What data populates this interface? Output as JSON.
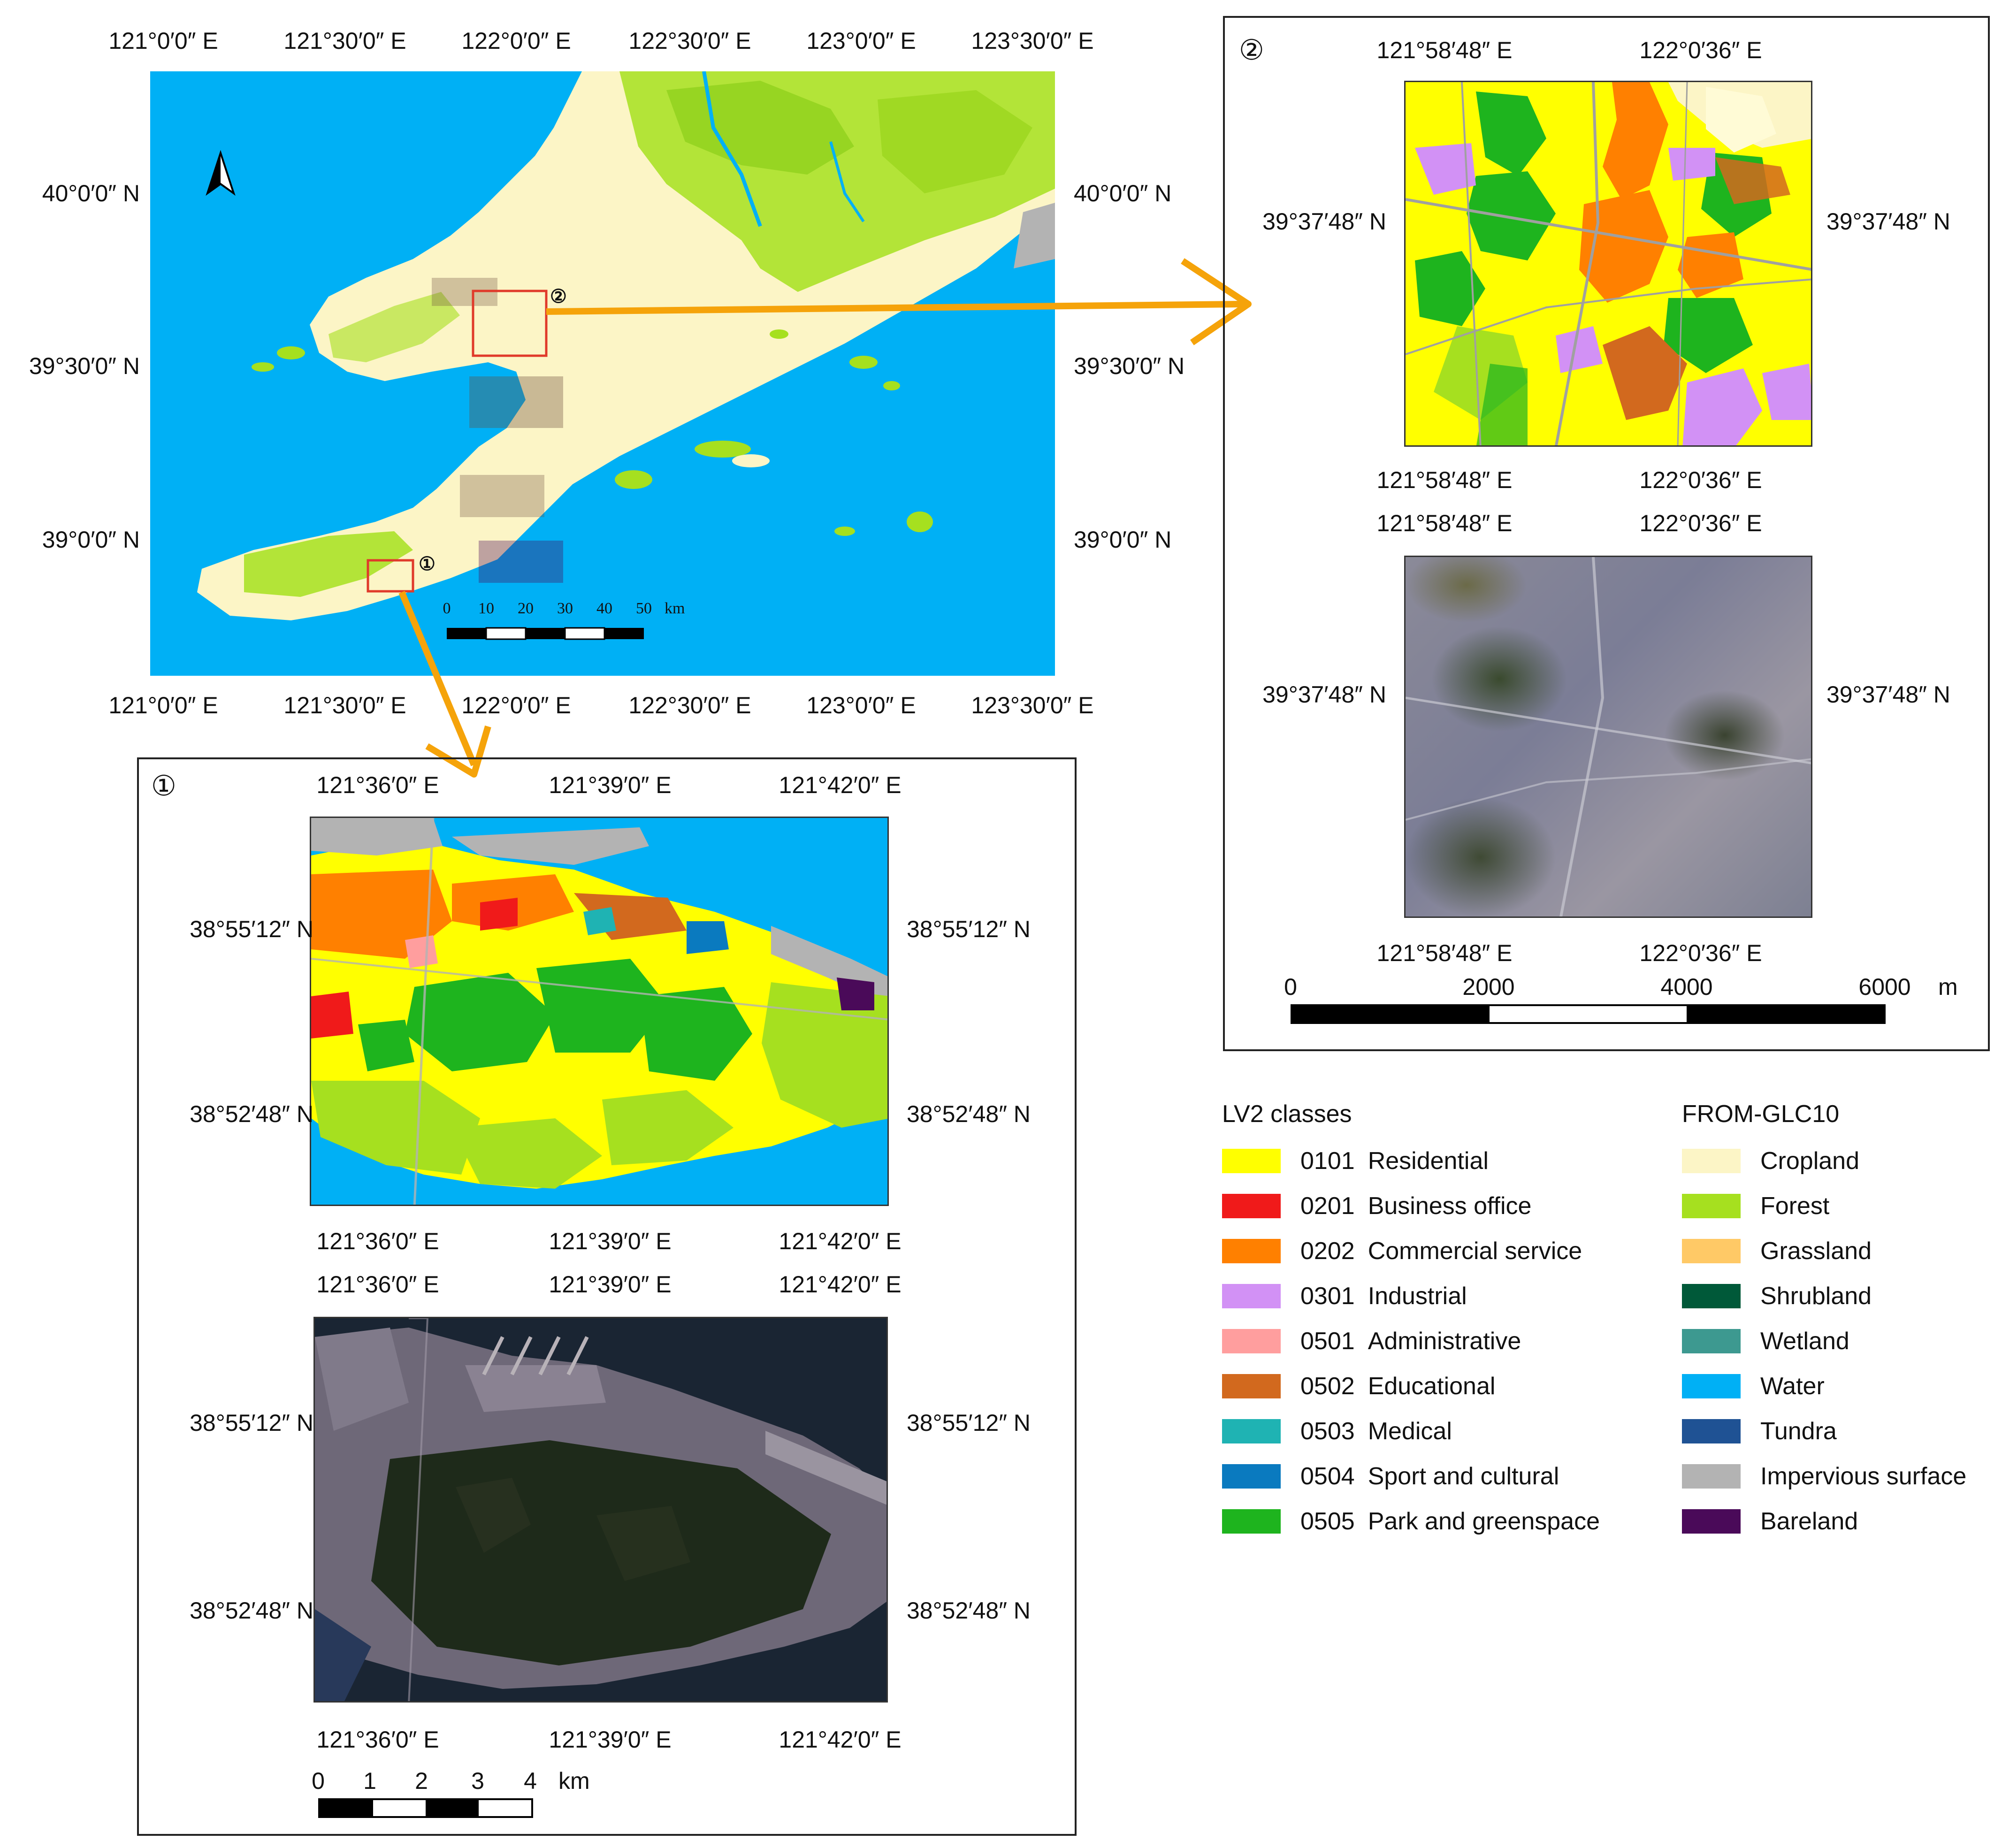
{
  "overview": {
    "top_ticks": [
      "121°0′0″ E",
      "121°30′0″ E",
      "122°0′0″ E",
      "122°30′0″ E",
      "123°0′0″ E",
      "123°30′0″ E"
    ],
    "bottom_ticks": [
      "121°0′0″ E",
      "121°30′0″ E",
      "122°0′0″ E",
      "122°30′0″ E",
      "123°0′0″ E",
      "123°30′0″ E"
    ],
    "left_ticks": [
      "40°0′0″ N",
      "39°30′0″ N",
      "39°0′0″ N"
    ],
    "right_ticks": [
      "40°0′0″ N",
      "39°30′0″ N",
      "39°0′0″ N"
    ],
    "scale_ticks": [
      "0",
      "10",
      "20",
      "30",
      "40",
      "50"
    ],
    "scale_unit": "km",
    "marker_1": "①",
    "marker_2": "②",
    "north_arrow": "north-arrow-icon"
  },
  "inset2": {
    "number": "②",
    "top_ticks": [
      "121°58′48″ E",
      "122°0′36″ E"
    ],
    "mid_ticks_a": [
      "121°58′48″ E",
      "122°0′36″ E"
    ],
    "mid_ticks_b": [
      "121°58′48″ E",
      "122°0′36″ E"
    ],
    "bottom_ticks": [
      "121°58′48″ E",
      "122°0′36″ E"
    ],
    "lat_upper": "39°37′48″ N",
    "lat_lower": "39°37′48″ N",
    "scale_ticks": [
      "0",
      "2000",
      "4000",
      "6000"
    ],
    "scale_unit": "m"
  },
  "inset1": {
    "number": "①",
    "top_ticks": [
      "121°36′0″ E",
      "121°39′0″ E",
      "121°42′0″ E"
    ],
    "mid_ticks_a": [
      "121°36′0″ E",
      "121°39′0″ E",
      "121°42′0″ E"
    ],
    "mid_ticks_b": [
      "121°36′0″ E",
      "121°39′0″ E",
      "121°42′0″ E"
    ],
    "bottom_ticks": [
      "121°36′0″ E",
      "121°39′0″ E",
      "121°42′0″ E"
    ],
    "lat_a": "38°55′12″ N",
    "lat_b": "38°52′48″ N",
    "scale_ticks": [
      "0",
      "1",
      "2",
      "3",
      "4"
    ],
    "scale_unit": "km"
  },
  "legend": {
    "lv2_title": "LV2 classes",
    "glc_title": "FROM-GLC10",
    "lv2": [
      {
        "code": "0101",
        "name": "Residential",
        "color": "#ffff00"
      },
      {
        "code": "0201",
        "name": "Business office",
        "color": "#f01a1a"
      },
      {
        "code": "0202",
        "name": "Commercial service",
        "color": "#ff8000"
      },
      {
        "code": "0301",
        "name": "Industrial",
        "color": "#d291f5"
      },
      {
        "code": "0501",
        "name": "Administrative",
        "color": "#ff9e9e"
      },
      {
        "code": "0502",
        "name": "Educational",
        "color": "#d2691e"
      },
      {
        "code": "0503",
        "name": "Medical",
        "color": "#1fb3b3"
      },
      {
        "code": "0504",
        "name": "Sport and cultural",
        "color": "#0a7abf"
      },
      {
        "code": "0505",
        "name": "Park and greenspace",
        "color": "#1eb41e"
      }
    ],
    "glc": [
      {
        "name": "Cropland",
        "color": "#fcf5c6"
      },
      {
        "name": "Forest",
        "color": "#a6e01f"
      },
      {
        "name": "Grassland",
        "color": "#ffc966"
      },
      {
        "name": "Shrubland",
        "color": "#005939"
      },
      {
        "name": "Wetland",
        "color": "#3d9990"
      },
      {
        "name": "Water",
        "color": "#00b0f5"
      },
      {
        "name": "Tundra",
        "color": "#1f5294"
      },
      {
        "name": "Impervious surface",
        "color": "#b3b3b3"
      },
      {
        "name": "Bareland",
        "color": "#4a0a59"
      }
    ]
  },
  "colors": {
    "water": "#00b0f5",
    "arrow": "#f5a30a",
    "frame": "#222222",
    "highlight_box": "#e03a2a"
  }
}
